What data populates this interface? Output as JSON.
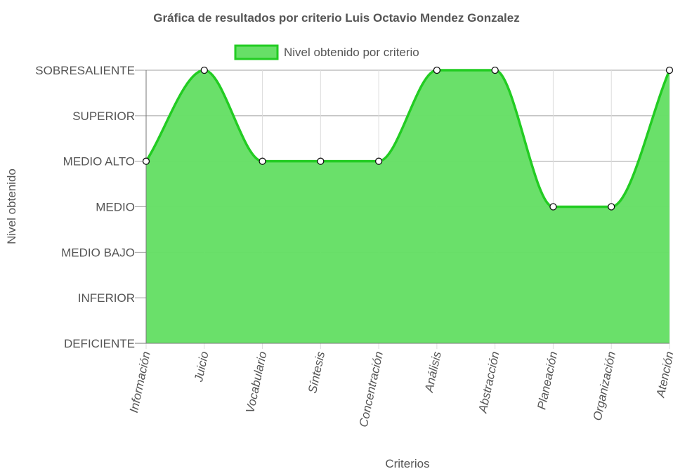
{
  "chart_data": {
    "type": "area",
    "title": "Gráfica de resultados por criterio Luis Octavio Mendez Gonzalez",
    "xlabel": "Criterios",
    "ylabel": "Nivel obtenido",
    "y_levels": [
      "DEFICIENTE",
      "INFERIOR",
      "MEDIO BAJO",
      "MEDIO",
      "MEDIO ALTO",
      "SUPERIOR",
      "SOBRESALIENTE"
    ],
    "categories": [
      "Información",
      "Juicio",
      "Vocabulario",
      "Síntesis",
      "Concentración",
      "Análisis",
      "Abstracción",
      "Planeación",
      "Organización",
      "Atención"
    ],
    "series": [
      {
        "name": "Nivel obtenido por criterio",
        "values": [
          "MEDIO ALTO",
          "SOBRESALIENTE",
          "MEDIO ALTO",
          "MEDIO ALTO",
          "MEDIO ALTO",
          "SOBRESALIENTE",
          "SOBRESALIENTE",
          "MEDIO",
          "MEDIO",
          "SOBRESALIENTE"
        ]
      }
    ],
    "legend_position": "top",
    "grid": true,
    "fill_color": "#67df67",
    "line_color": "#22cc22"
  }
}
